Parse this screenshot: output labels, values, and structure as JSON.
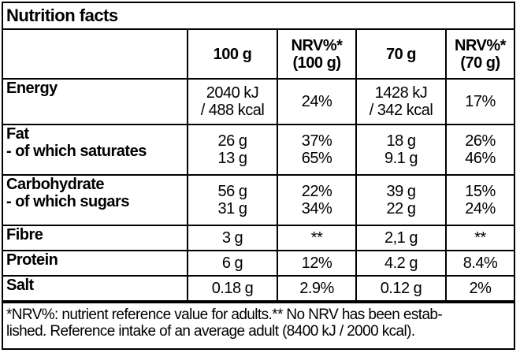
{
  "title": "Nutrition facts",
  "headers": {
    "col1": "100 g",
    "col2_line1": "NRV%*",
    "col2_line2": "(100 g)",
    "col3": "70 g",
    "col4_line1": "NRV%*",
    "col4_line2": "(70 g)"
  },
  "rows": {
    "energy": {
      "name": "Energy",
      "v100_line1": "2040 kJ",
      "v100_line2": "/ 488 kcal",
      "nrv100": "24%",
      "v70_line1": "1428 kJ",
      "v70_line2": "/ 342 kcal",
      "nrv70": "17%"
    },
    "fat": {
      "name": "Fat",
      "sub_name": "- of which saturates",
      "v100": "26 g",
      "v100_sub": "13 g",
      "nrv100": "37%",
      "nrv100_sub": "65%",
      "v70": "18 g",
      "v70_sub": "9.1 g",
      "nrv70": "26%",
      "nrv70_sub": "46%"
    },
    "carbohydrate": {
      "name": "Carbohydrate",
      "sub_name": "- of which sugars",
      "v100": "56 g",
      "v100_sub": "31 g",
      "nrv100": "22%",
      "nrv100_sub": "34%",
      "v70": "39 g",
      "v70_sub": "22 g",
      "nrv70": "15%",
      "nrv70_sub": "24%"
    },
    "fibre": {
      "name": "Fibre",
      "v100": "3 g",
      "nrv100": "**",
      "v70": "2,1 g",
      "nrv70": "**"
    },
    "protein": {
      "name": "Protein",
      "v100": "6 g",
      "nrv100": "12%",
      "v70": "4.2 g",
      "nrv70": "8.4%"
    },
    "salt": {
      "name": "Salt",
      "v100": "0.18 g",
      "nrv100": "2.9%",
      "v70": "0.12 g",
      "nrv70": "2%"
    }
  },
  "footnote": {
    "line1": "*NRV%: nutrient reference value for adults.** No NRV has been estab-",
    "line2": "lished. Reference intake of an average adult (8400 kJ / 2000 kcal)."
  }
}
